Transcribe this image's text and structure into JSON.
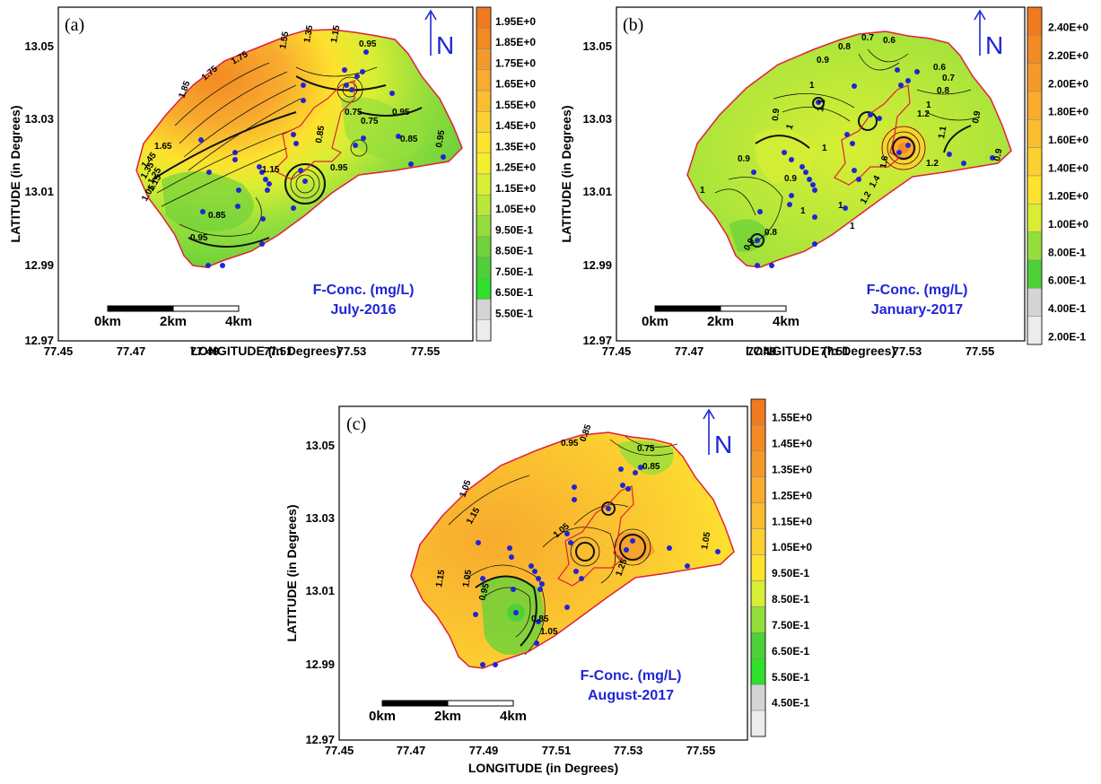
{
  "colors": {
    "boundary": "#e0203a",
    "well": "#1f25d6",
    "contour": "#111111",
    "caption": "#1f25d6",
    "north": "#1f25d6",
    "gray_light": "#e4e4e4",
    "gray_mid": "#d0d0d0"
  },
  "axes": {
    "x_label": "LONGITUDE (in Degrees)",
    "y_label": "LATITUDE (in Degrees)",
    "x_ticks": [
      "77.45",
      "77.47",
      "77.49",
      "77.51",
      "77.53",
      "77.55"
    ],
    "y_ticks": [
      "13.05",
      "13.03",
      "13.01",
      "12.99",
      "12.97"
    ]
  },
  "scale_bar": {
    "labels": [
      "0km",
      "2km",
      "4km"
    ]
  },
  "north_symbol": "N",
  "panels": [
    {
      "id": "a",
      "label": "(a)",
      "caption_line1": "F-Conc. (mg/L)",
      "caption_line2": "July-2016",
      "legend": [
        {
          "label": "1.95E+0",
          "color": "#f07a20"
        },
        {
          "label": "1.85E+0",
          "color": "#f38a24"
        },
        {
          "label": "1.75E+0",
          "color": "#f59a2a"
        },
        {
          "label": "1.65E+0",
          "color": "#f8ab2e"
        },
        {
          "label": "1.55E+0",
          "color": "#fabd30"
        },
        {
          "label": "1.45E+0",
          "color": "#fcd030"
        },
        {
          "label": "1.35E+0",
          "color": "#fde22e"
        },
        {
          "label": "1.25E+0",
          "color": "#f3ef2c"
        },
        {
          "label": "1.15E+0",
          "color": "#d8ee34"
        },
        {
          "label": "1.05E+0",
          "color": "#b8e83a"
        },
        {
          "label": "9.50E-1",
          "color": "#94de3c"
        },
        {
          "label": "8.50E-1",
          "color": "#6fd23a"
        },
        {
          "label": "7.50E-1",
          "color": "#4ed038"
        },
        {
          "label": "6.50E-1",
          "color": "#2ee02a"
        },
        {
          "label": "5.50E-1",
          "color": "#d4d4d4"
        },
        {
          "label": "",
          "color": "#ececec"
        }
      ],
      "contour_labels": [
        "1.85",
        "1.75",
        "1.75",
        "1.55",
        "1.35",
        "1.15",
        "0.95",
        "1.65",
        "1.45",
        "1.35",
        "1.25",
        "1.15",
        "1.05",
        "0.85",
        "0.95",
        "0.75",
        "0.95",
        "0.85",
        "0.95",
        "1.15",
        "0.85",
        "0.95",
        "0.75"
      ]
    },
    {
      "id": "b",
      "label": "(b)",
      "caption_line1": "F-Conc. (mg/L)",
      "caption_line2": "January-2017",
      "legend": [
        {
          "label": "2.40E+0",
          "color": "#f07a20"
        },
        {
          "label": "2.20E+0",
          "color": "#f38a24"
        },
        {
          "label": "2.00E+0",
          "color": "#f59a2a"
        },
        {
          "label": "1.80E+0",
          "color": "#f8ab2e"
        },
        {
          "label": "1.60E+0",
          "color": "#fabd30"
        },
        {
          "label": "1.40E+0",
          "color": "#fcd030"
        },
        {
          "label": "1.20E+0",
          "color": "#fde22e"
        },
        {
          "label": "1.00E+0",
          "color": "#d8ee34"
        },
        {
          "label": "8.00E-1",
          "color": "#94de3c"
        },
        {
          "label": "6.00E-1",
          "color": "#4ed038"
        },
        {
          "label": "4.00E-1",
          "color": "#d4d4d4"
        },
        {
          "label": "2.00E-1",
          "color": "#ececec"
        }
      ],
      "contour_labels": [
        "0.9",
        "0.8",
        "0.7",
        "0.6",
        "0.6",
        "0.7",
        "0.8",
        "1",
        "1.1",
        "0.9",
        "1",
        "1.2",
        "0.9",
        "1",
        "1.1",
        "0.9",
        "1",
        "1.6",
        "1.4",
        "1.2",
        "1.2",
        "1",
        "0.8",
        "0.9",
        "0.9",
        "1",
        "1",
        "0.9",
        "1"
      ]
    },
    {
      "id": "c",
      "label": "(c)",
      "caption_line1": "F-Conc. (mg/L)",
      "caption_line2": "August-2017",
      "legend": [
        {
          "label": "1.55E+0",
          "color": "#f07a20"
        },
        {
          "label": "1.45E+0",
          "color": "#f38a24"
        },
        {
          "label": "1.35E+0",
          "color": "#f59a2a"
        },
        {
          "label": "1.25E+0",
          "color": "#f8ab2e"
        },
        {
          "label": "1.15E+0",
          "color": "#fabd30"
        },
        {
          "label": "1.05E+0",
          "color": "#fcd030"
        },
        {
          "label": "9.50E-1",
          "color": "#fde22e"
        },
        {
          "label": "8.50E-1",
          "color": "#d8ee34"
        },
        {
          "label": "7.50E-1",
          "color": "#94de3c"
        },
        {
          "label": "6.50E-1",
          "color": "#4ed038"
        },
        {
          "label": "5.50E-1",
          "color": "#2ee02a"
        },
        {
          "label": "4.50E-1",
          "color": "#d4d4d4"
        },
        {
          "label": "",
          "color": "#ececec"
        }
      ],
      "contour_labels": [
        "0.95",
        "0.85",
        "0.75",
        "0.85",
        "1.05",
        "1.15",
        "1.05",
        "1.15",
        "1.05",
        "0.95",
        "0.85",
        "1.05",
        "1.25",
        "1.05"
      ]
    }
  ]
}
